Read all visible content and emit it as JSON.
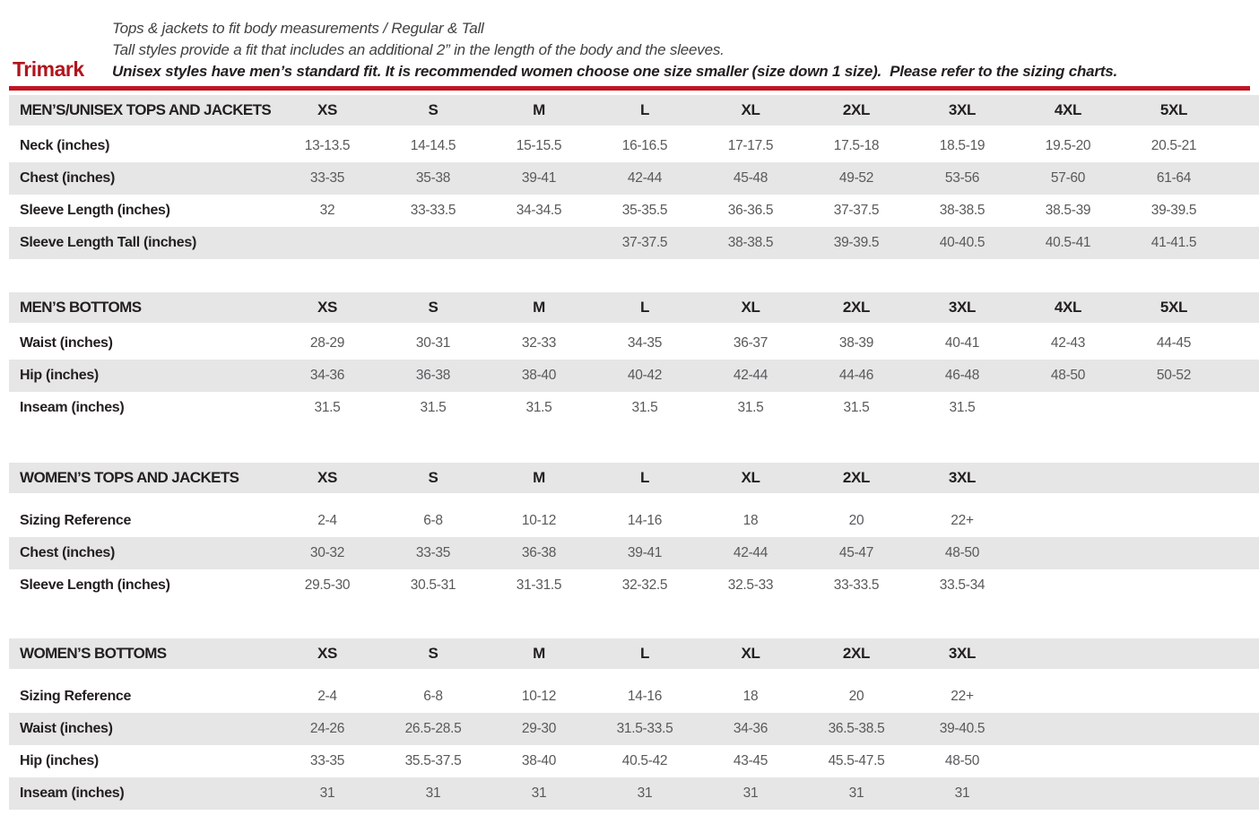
{
  "colors": {
    "accent_red": "#c11622",
    "accent_dark_red": "#b0151c",
    "row_gray": "#e6e6e6",
    "label_dark": "#231f20",
    "value_gray": "#58595b"
  },
  "header": {
    "logo": "Trimark",
    "line1": "Tops & jackets to fit body measurements / Regular & Tall",
    "line2": "Tall styles provide a fit that includes an additional 2” in the length of the body and the sleeves.",
    "line3": "Unisex styles have men’s standard fit. It is recommended women choose one size smaller (size down 1 size).  Please refer to the sizing charts."
  },
  "tables": [
    {
      "title": "MEN’S/UNISEX TOPS AND JACKETS",
      "sizes": [
        "XS",
        "S",
        "M",
        "L",
        "XL",
        "2XL",
        "3XL",
        "4XL",
        "5XL"
      ],
      "rows": [
        {
          "label": "Neck (inches)",
          "values": [
            "13-13.5",
            "14-14.5",
            "15-15.5",
            "16-16.5",
            "17-17.5",
            "17.5-18",
            "18.5-19",
            "19.5-20",
            "20.5-21"
          ]
        },
        {
          "label": "Chest (inches)",
          "values": [
            "33-35",
            "35-38",
            "39-41",
            "42-44",
            "45-48",
            "49-52",
            "53-56",
            "57-60",
            "61-64"
          ]
        },
        {
          "label": "Sleeve Length (inches)",
          "values": [
            "32",
            "33-33.5",
            "34-34.5",
            "35-35.5",
            "36-36.5",
            "37-37.5",
            "38-38.5",
            "38.5-39",
            "39-39.5"
          ]
        },
        {
          "label": "Sleeve Length Tall (inches)",
          "values": [
            "",
            "",
            "",
            "37-37.5",
            "38-38.5",
            "39-39.5",
            "40-40.5",
            "40.5-41",
            "41-41.5"
          ]
        }
      ]
    },
    {
      "title": "MEN’S BOTTOMS",
      "sizes": [
        "XS",
        "S",
        "M",
        "L",
        "XL",
        "2XL",
        "3XL",
        "4XL",
        "5XL"
      ],
      "rows": [
        {
          "label": "Waist (inches)",
          "values": [
            "28-29",
            "30-31",
            "32-33",
            "34-35",
            "36-37",
            "38-39",
            "40-41",
            "42-43",
            "44-45"
          ]
        },
        {
          "label": "Hip (inches)",
          "values": [
            "34-36",
            "36-38",
            "38-40",
            "40-42",
            "42-44",
            "44-46",
            "46-48",
            "48-50",
            "50-52"
          ]
        },
        {
          "label": "Inseam (inches)",
          "values": [
            "31.5",
            "31.5",
            "31.5",
            "31.5",
            "31.5",
            "31.5",
            "31.5",
            "",
            ""
          ]
        }
      ]
    },
    {
      "title": "WOMEN’S TOPS AND JACKETS",
      "sizes": [
        "XS",
        "S",
        "M",
        "L",
        "XL",
        "2XL",
        "3XL",
        "",
        ""
      ],
      "rows": [
        {
          "label": "Sizing Reference",
          "values": [
            "2-4",
            "6-8",
            "10-12",
            "14-16",
            "18",
            "20",
            "22+",
            "",
            ""
          ]
        },
        {
          "label": "Chest (inches)",
          "values": [
            "30-32",
            "33-35",
            "36-38",
            "39-41",
            "42-44",
            "45-47",
            "48-50",
            "",
            ""
          ]
        },
        {
          "label": "Sleeve Length (inches)",
          "values": [
            "29.5-30",
            "30.5-31",
            "31-31.5",
            "32-32.5",
            "32.5-33",
            "33-33.5",
            "33.5-34",
            "",
            ""
          ]
        }
      ]
    },
    {
      "title": "WOMEN’S BOTTOMS",
      "sizes": [
        "XS",
        "S",
        "M",
        "L",
        "XL",
        "2XL",
        "3XL",
        "",
        ""
      ],
      "rows": [
        {
          "label": "Sizing Reference",
          "values": [
            "2-4",
            "6-8",
            "10-12",
            "14-16",
            "18",
            "20",
            "22+",
            "",
            ""
          ]
        },
        {
          "label": "Waist (inches)",
          "values": [
            "24-26",
            "26.5-28.5",
            "29-30",
            "31.5-33.5",
            "34-36",
            "36.5-38.5",
            "39-40.5",
            "",
            ""
          ]
        },
        {
          "label": "Hip (inches)",
          "values": [
            "33-35",
            "35.5-37.5",
            "38-40",
            "40.5-42",
            "43-45",
            "45.5-47.5",
            "48-50",
            "",
            ""
          ]
        },
        {
          "label": "Inseam (inches)",
          "values": [
            "31",
            "31",
            "31",
            "31",
            "31",
            "31",
            "31",
            "",
            ""
          ]
        }
      ]
    }
  ],
  "layout_tops": [
    106,
    326,
    516,
    712
  ]
}
